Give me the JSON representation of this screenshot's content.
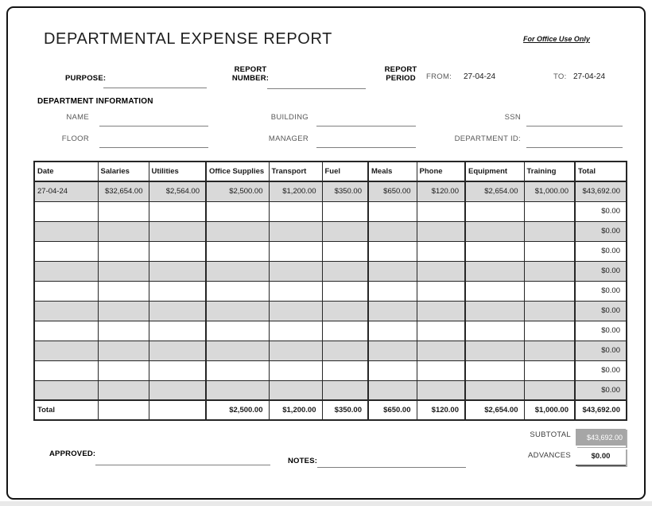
{
  "header": {
    "title": "DEPARTMENTAL EXPENSE REPORT",
    "office_use_note": "For Office Use Only",
    "purpose_label": "PURPOSE:",
    "report_number_label": "REPORT\nNUMBER:",
    "report_period_label": "REPORT\nPERIOD",
    "from_label": "FROM:",
    "from_value": "27-04-24",
    "to_label": "TO:",
    "to_value": "27-04-24"
  },
  "department_info": {
    "title": "DEPARTMENT INFORMATION",
    "name_label": "NAME",
    "name_value": "",
    "building_label": "BUILDING",
    "building_value": "",
    "ssn_label": "SSN",
    "ssn_value": "",
    "floor_label": "FLOOR",
    "floor_value": "",
    "manager_label": "MANAGER",
    "manager_value": "",
    "department_id_label": "DEPARTMENT ID:",
    "department_id_value": ""
  },
  "expense_table": {
    "columns": [
      "Date",
      "Salaries",
      "Utilities",
      "Office Supplies",
      "Transport",
      "Fuel",
      "Meals",
      "Phone",
      "Equipment",
      "Training",
      "Total"
    ],
    "rows": [
      [
        "27-04-24",
        "$32,654.00",
        "$2,564.00",
        "$2,500.00",
        "$1,200.00",
        "$350.00",
        "$650.00",
        "$120.00",
        "$2,654.00",
        "$1,000.00",
        "$43,692.00"
      ],
      [
        "",
        "",
        "",
        "",
        "",
        "",
        "",
        "",
        "",
        "",
        "$0.00"
      ],
      [
        "",
        "",
        "",
        "",
        "",
        "",
        "",
        "",
        "",
        "",
        "$0.00"
      ],
      [
        "",
        "",
        "",
        "",
        "",
        "",
        "",
        "",
        "",
        "",
        "$0.00"
      ],
      [
        "",
        "",
        "",
        "",
        "",
        "",
        "",
        "",
        "",
        "",
        "$0.00"
      ],
      [
        "",
        "",
        "",
        "",
        "",
        "",
        "",
        "",
        "",
        "",
        "$0.00"
      ],
      [
        "",
        "",
        "",
        "",
        "",
        "",
        "",
        "",
        "",
        "",
        "$0.00"
      ],
      [
        "",
        "",
        "",
        "",
        "",
        "",
        "",
        "",
        "",
        "",
        "$0.00"
      ],
      [
        "",
        "",
        "",
        "",
        "",
        "",
        "",
        "",
        "",
        "",
        "$0.00"
      ],
      [
        "",
        "",
        "",
        "",
        "",
        "",
        "",
        "",
        "",
        "",
        "$0.00"
      ],
      [
        "",
        "",
        "",
        "",
        "",
        "",
        "",
        "",
        "",
        "",
        "$0.00"
      ]
    ],
    "total_row": [
      "Total",
      "",
      "",
      "$2,500.00",
      "$1,200.00",
      "$350.00",
      "$650.00",
      "$120.00",
      "$2,654.00",
      "$1,000.00",
      "$43,692.00"
    ]
  },
  "summary": {
    "subtotal_label": "SUBTOTAL",
    "subtotal_value": "$43,692.00",
    "advances_label": "ADVANCES",
    "advances_value": "$0.00"
  },
  "footer": {
    "approved_label": "APPROVED:",
    "approved_value": "",
    "notes_label": "NOTES:",
    "notes_value": ""
  },
  "colors": {
    "row_shade": "#d9d9d9",
    "subtotal_box": "#a6a6a6",
    "table_border": "#262626",
    "label_gray": "#595959",
    "line_gray": "#7f7f7f"
  }
}
